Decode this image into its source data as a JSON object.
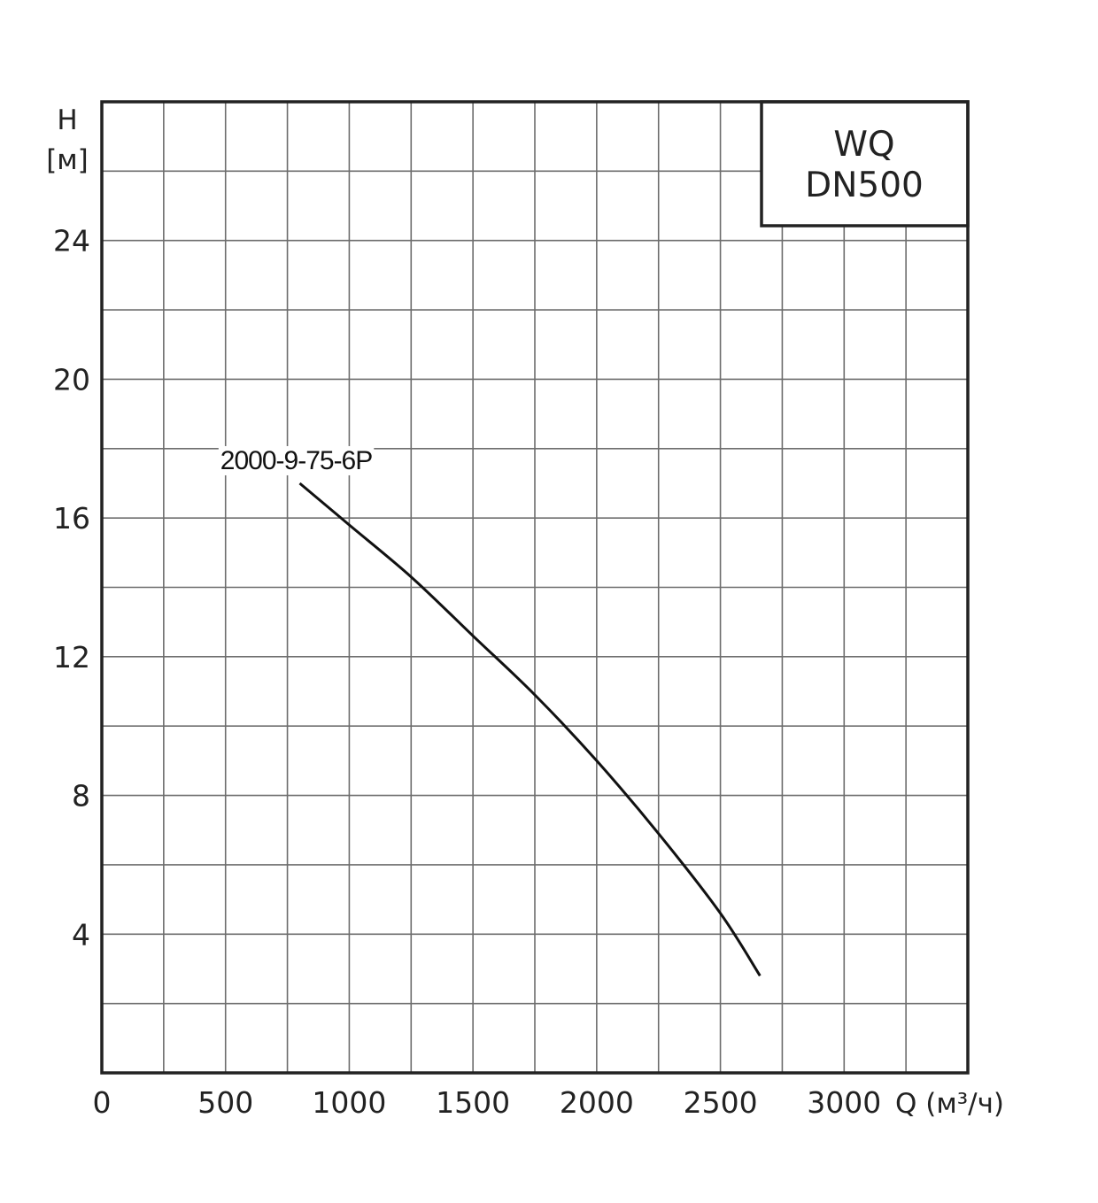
{
  "chart_data": {
    "type": "line",
    "title": "",
    "model_box": {
      "line1": "WQ",
      "line2": "DN500"
    },
    "ylabel": {
      "line1": "H",
      "line2": "[м]"
    },
    "xlabel": "Q (м³/ч)",
    "xlim": [
      0,
      3500
    ],
    "ylim": [
      0,
      28
    ],
    "x_ticks": [
      0,
      500,
      1000,
      1500,
      2000,
      2500,
      3000
    ],
    "y_ticks": [
      4,
      8,
      12,
      16,
      20,
      24
    ],
    "x_grid_step": 250,
    "y_grid_step": 2,
    "grid": true,
    "series": [
      {
        "name": "2000-9-75-6P",
        "color": "#111111",
        "x": [
          800,
          1000,
          1250,
          1500,
          1750,
          2000,
          2250,
          2500,
          2660
        ],
        "y": [
          17.0,
          15.8,
          14.3,
          12.6,
          10.9,
          9.0,
          6.9,
          4.6,
          2.8
        ]
      }
    ]
  }
}
